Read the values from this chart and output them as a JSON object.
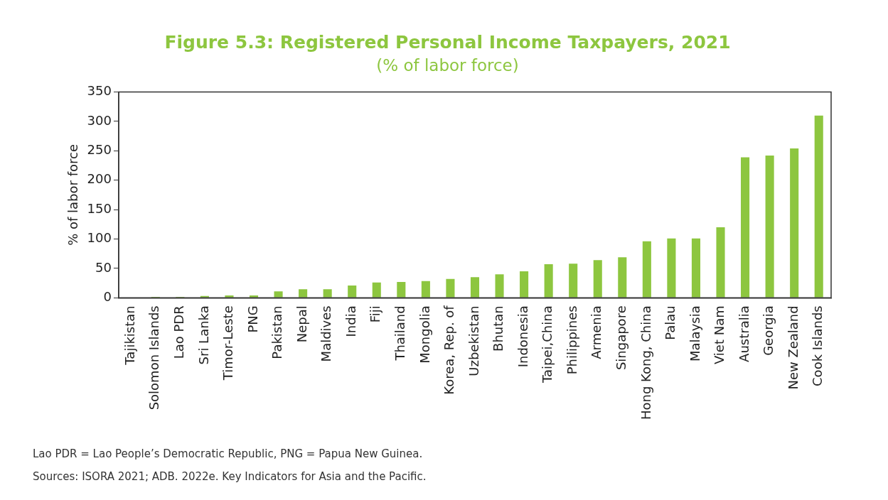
{
  "chart_data": {
    "type": "bar",
    "title": "Figure 5.3: Registered Personal Income Taxpayers, 2021",
    "subtitle": "(% of labor force)",
    "ylabel": "% of labor force",
    "categories": [
      "Tajikistan",
      "Solomon Islands",
      "Lao PDR",
      "Sri Lanka",
      "Timor-Leste",
      "PNG",
      "Pakistan",
      "Nepal",
      "Maldives",
      "India",
      "Fiji",
      "Thailand",
      "Mongolia",
      "Korea, Rep. of",
      "Uzbekistan",
      "Bhutan",
      "Indonesia",
      "Taipei,China",
      "Philippines",
      "Armenia",
      "Singapore",
      "Hong Kong, China",
      "Palau",
      "Malaysia",
      "Viet Nam",
      "Australia",
      "Georgia",
      "New Zealand",
      "Cook Islands"
    ],
    "values": [
      0,
      1.5,
      1.5,
      3,
      4,
      4,
      11,
      14.5,
      14.5,
      21,
      26,
      27,
      28.5,
      32,
      35,
      40,
      45,
      57,
      58,
      64,
      69,
      96,
      101,
      101,
      120,
      239,
      242,
      254,
      310
    ],
    "color": "#8dc63f",
    "ylim": [
      0,
      350
    ],
    "yticks": [
      0,
      50,
      100,
      150,
      200,
      250,
      300,
      350
    ],
    "grid": false,
    "legend": false,
    "annotations": [
      "Lao PDR = Lao People’s Democratic Republic, PNG = Papua New Guinea.",
      "Sources: ISORA 2021; ADB. 2022e. Key Indicators for Asia and the Pacific."
    ]
  }
}
